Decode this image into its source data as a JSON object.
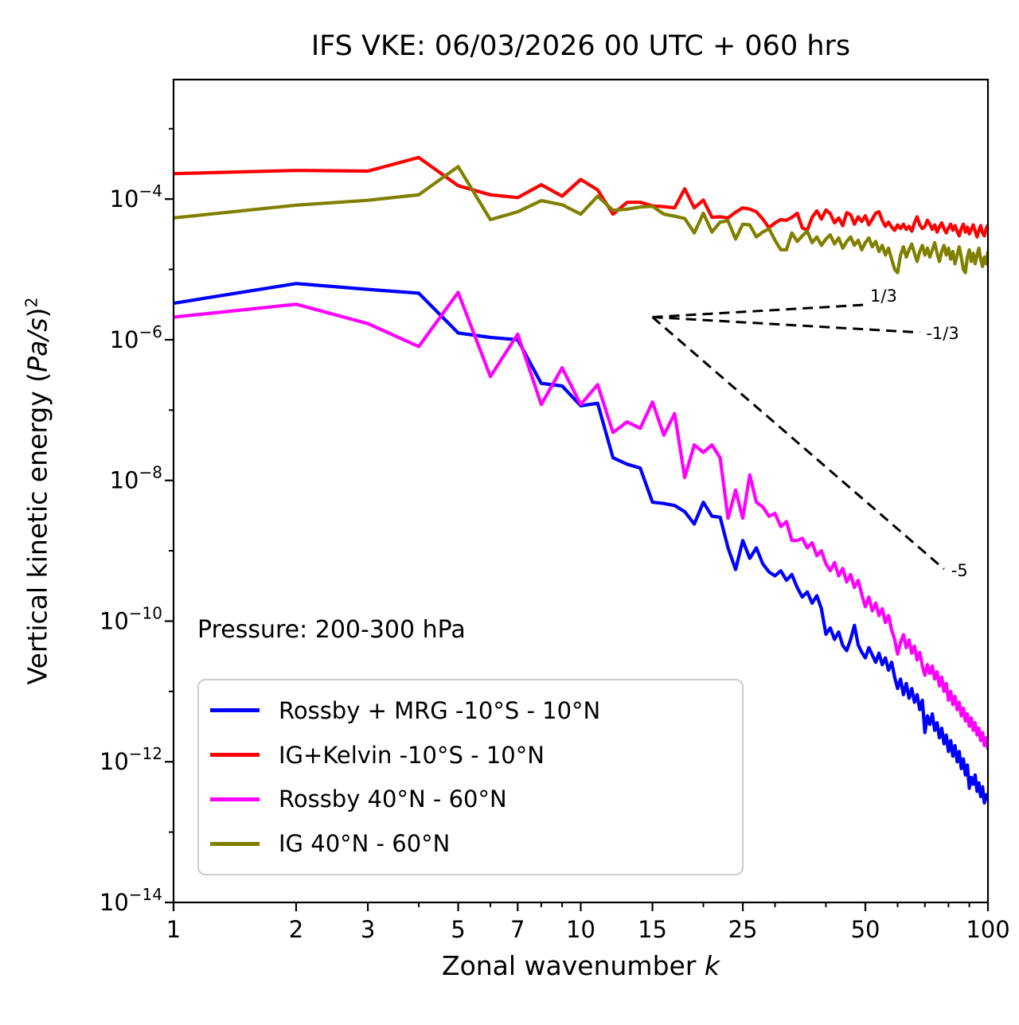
{
  "title": "IFS VKE: 06/03/2026 00 UTC + 060 hrs",
  "annotations": {
    "pressure": "Pressure: 200-300 hPa"
  },
  "x_axis": {
    "label_prefix": "Zonal wavenumber ",
    "label_italic": "k",
    "scale": "log",
    "range": [
      1,
      100
    ],
    "major_ticks": [
      1,
      2,
      3,
      5,
      7,
      10,
      15,
      25,
      50,
      100
    ],
    "minor_ticks": [
      4,
      6,
      8,
      9,
      20,
      30,
      40,
      60,
      70,
      80,
      90
    ]
  },
  "y_axis": {
    "label_prefix": "Vertical kinetic energy (",
    "label_italic": "Pa/s",
    "label_suffix": ")",
    "label_superscript": "2",
    "scale": "log",
    "range": [
      1e-14,
      0.005
    ],
    "major_tick_exponents": [
      -4,
      -6,
      -8,
      -10,
      -12,
      -14
    ],
    "minor_tick_exponents": [
      -3,
      -5,
      -7,
      -9,
      -11,
      -13
    ]
  },
  "chart_data": {
    "type": "line",
    "title": "IFS VKE: 06/03/2026 00 UTC + 060 hrs",
    "xlabel": "Zonal wavenumber k",
    "ylabel": "Vertical kinetic energy (Pa/s)^2",
    "xscale": "log",
    "yscale": "log",
    "xlim": [
      1,
      100
    ],
    "ylim": [
      1e-14,
      0.005
    ],
    "grid": false,
    "x_start": 1,
    "series": [
      {
        "name": "Rossby + MRG -10°S - 10°N",
        "color": "#0000ff",
        "values": [
          3.3e-06,
          6.3e-06,
          5.2e-06,
          4.6e-06,
          1.25e-06,
          1.08e-06,
          1e-06,
          2.4e-07,
          2.2e-07,
          1.15e-07,
          1.25e-07,
          2.1e-08,
          1.7e-08,
          1.5e-08,
          4.9e-09,
          4.7e-09,
          4.4e-09,
          3.6e-09,
          2.4e-09,
          4.9e-09,
          3.1e-09,
          3e-09,
          1.1e-09,
          5.4e-10,
          1.4e-09,
          7.8e-10,
          1.1e-09,
          6.5e-10,
          5e-10,
          4.4e-10,
          5.2e-10,
          3.8e-10,
          4.6e-10,
          3e-10,
          2.2e-10,
          2.6e-10,
          1.8e-10,
          2.3e-10,
          1.5e-10,
          6.5e-11,
          8e-11,
          5.5e-11,
          7e-11,
          4.5e-11,
          3.8e-11,
          5.5e-11,
          8.7e-11,
          4.6e-11,
          3.6e-11,
          3e-11,
          4.2e-11,
          3.3e-11,
          2.6e-11,
          3.5e-11,
          2.4e-11,
          3e-11,
          2e-11,
          2.6e-11,
          1.6e-11,
          1.1e-11,
          1.5e-11,
          9e-12,
          1.3e-11,
          8e-12,
          1.1e-11,
          7e-12,
          9e-12,
          5.5e-12,
          7.5e-12,
          2.6e-12,
          4.5e-12,
          3.4e-12,
          4.8e-12,
          2.8e-12,
          3.6e-12,
          2.2e-12,
          3e-12,
          1.8e-12,
          2.4e-12,
          1.4e-12,
          2e-12,
          1.2e-12,
          1.7e-12,
          1e-12,
          1.4e-12,
          8e-13,
          1.1e-12,
          6.5e-13,
          9e-13,
          4.2e-13,
          6e-13,
          4.8e-13,
          6.5e-13,
          3.8e-13,
          5e-13,
          3.2e-13,
          4.4e-13,
          2.6e-13,
          3.4e-13,
          2.8e-13
        ]
      },
      {
        "name": "IG+Kelvin -10°S - 10°N",
        "color": "#ff0000",
        "values": [
          0.00023,
          0.000255,
          0.00025,
          0.00039,
          0.000155,
          0.000115,
          0.000105,
          0.00016,
          0.00011,
          0.00019,
          0.000135,
          6.1e-05,
          9e-05,
          9e-05,
          8e-05,
          7.8e-05,
          7.5e-05,
          0.00014,
          7.5e-05,
          9.7e-05,
          5.5e-05,
          5.6e-05,
          5.4e-05,
          6.5e-05,
          7.5e-05,
          7.2e-05,
          6.6e-05,
          5.2e-05,
          3.9e-05,
          4.6e-05,
          5.1e-05,
          5e-05,
          5.5e-05,
          6.3e-05,
          3.9e-05,
          3.6e-05,
          5.5e-05,
          6.8e-05,
          5.2e-05,
          7e-05,
          6.2e-05,
          4.6e-05,
          5.4e-05,
          4.2e-05,
          6.4e-05,
          6e-05,
          4.4e-05,
          5.6e-05,
          4.8e-05,
          5.8e-05,
          4.3e-05,
          5.2e-05,
          6.3e-05,
          6.6e-05,
          5e-05,
          4.1e-05,
          4.7e-05,
          4e-05,
          3.6e-05,
          4.3e-05,
          3.8e-05,
          4.4e-05,
          3.7e-05,
          4.1e-05,
          3.5e-05,
          4.6e-05,
          5.6e-05,
          4.3e-05,
          3.8e-05,
          4.1e-05,
          5e-05,
          4.4e-05,
          3.7e-05,
          4.3e-05,
          3.4e-05,
          4e-05,
          4.6e-05,
          3.8e-05,
          3.3e-05,
          3.9e-05,
          4.4e-05,
          3.6e-05,
          4.2e-05,
          3.5e-05,
          3e-05,
          3.8e-05,
          4.4e-05,
          3.4e-05,
          4e-05,
          3.2e-05,
          3.7e-05,
          4.3e-05,
          3.5e-05,
          2.9e-05,
          3.6e-05,
          4.2e-05,
          3.3e-05,
          3e-05,
          3.8e-05,
          4.3e-05
        ]
      },
      {
        "name": "Rossby 40°N - 60°N",
        "color": "#ff00ff",
        "values": [
          2.1e-06,
          3.2e-06,
          1.7e-06,
          8e-07,
          4.7e-06,
          3e-07,
          1.2e-06,
          1.2e-07,
          4e-07,
          1.2e-07,
          2.3e-07,
          4.8e-08,
          6.8e-08,
          5.5e-08,
          1.3e-07,
          4.4e-08,
          8.9e-08,
          1.1e-08,
          3.2e-08,
          2.5e-08,
          3.2e-08,
          2.1e-08,
          2.9e-09,
          7.3e-09,
          2.9e-09,
          1.2e-08,
          4.9e-09,
          4.2e-09,
          3.1e-09,
          3.4e-09,
          2.2e-09,
          2.6e-09,
          1.4e-09,
          1.4e-09,
          1.5e-09,
          1.1e-09,
          1.3e-09,
          8.5e-10,
          1e-09,
          6.5e-10,
          5.2e-10,
          6.8e-10,
          4.4e-10,
          5.6e-10,
          3.6e-10,
          4.6e-10,
          3e-10,
          3.8e-10,
          2.4e-10,
          1.6e-10,
          2.2e-10,
          1.4e-10,
          1.8e-10,
          1.2e-10,
          1.5e-10,
          9.5e-11,
          1.2e-10,
          7.5e-11,
          5.5e-11,
          3.4e-11,
          5e-11,
          6.4e-11,
          4.2e-11,
          5.4e-11,
          3.5e-11,
          4.4e-11,
          2.8e-11,
          3.6e-11,
          2.3e-11,
          1.7e-11,
          2.4e-11,
          1.8e-11,
          2.3e-11,
          1.5e-11,
          1.9e-11,
          1.2e-11,
          1.6e-11,
          1e-11,
          1.3e-11,
          7.5e-12,
          1e-11,
          6.5e-12,
          8.5e-12,
          5.5e-12,
          7e-12,
          4.5e-12,
          5.8e-12,
          3.8e-12,
          4.8e-12,
          3.2e-12,
          4.2e-12,
          2.8e-12,
          3.6e-12,
          2.4e-12,
          3e-12,
          2e-12,
          2.6e-12,
          1.7e-12,
          2.2e-12,
          1.5e-12
        ]
      },
      {
        "name": "IG 40°N - 60°N",
        "color": "#808000",
        "values": [
          5.4e-05,
          8.2e-05,
          9.6e-05,
          0.000115,
          0.00029,
          5.1e-05,
          6.6e-05,
          9.5e-05,
          8.3e-05,
          6.1e-05,
          0.00011,
          6.9e-05,
          7.2e-05,
          7.7e-05,
          7.9e-05,
          6.1e-05,
          5.7e-05,
          5.3e-05,
          3.3e-05,
          6.3e-05,
          3.4e-05,
          4.7e-05,
          4.9e-05,
          2.7e-05,
          4.4e-05,
          4.3e-05,
          2.9e-05,
          3.4e-05,
          3.8e-05,
          2.6e-05,
          1.9e-05,
          1.9e-05,
          3.3e-05,
          2.5e-05,
          3e-05,
          3.5e-05,
          2.4e-05,
          2.9e-05,
          2.2e-05,
          2.7e-05,
          3.1e-05,
          2.3e-05,
          2.8e-05,
          2e-05,
          2.5e-05,
          2.9e-05,
          2.2e-05,
          2.6e-05,
          1.9e-05,
          2.4e-05,
          2.8e-05,
          2.1e-05,
          2.5e-05,
          1.8e-05,
          2.2e-05,
          1.6e-05,
          2e-05,
          1.4e-05,
          1e-05,
          9e-06,
          1.6e-05,
          2.1e-05,
          1.5e-05,
          1.9e-05,
          2.3e-05,
          1.7e-05,
          1.3e-05,
          1.8e-05,
          2.2e-05,
          1.6e-05,
          2e-05,
          1.5e-05,
          1.9e-05,
          2.4e-05,
          1.7e-05,
          1.3e-05,
          1.8e-05,
          2.2e-05,
          1.6e-05,
          2e-05,
          1.4e-05,
          1.8e-05,
          1.2e-05,
          1.6e-05,
          2.1e-05,
          1.5e-05,
          1e-05,
          9e-06,
          1.5e-05,
          1.9e-05,
          1.3e-05,
          1.7e-05,
          1.2e-05,
          1.6e-05,
          2e-05,
          1.4e-05,
          1.1e-05,
          1.5e-05,
          1.2e-05,
          1.8e-05
        ]
      }
    ],
    "reference_lines": [
      {
        "label": "1/3",
        "slope": 0.333,
        "from": {
          "k": 15,
          "v": 2.1e-06
        },
        "to": {
          "k": 50,
          "v": 3.14e-06
        }
      },
      {
        "label": "-1/3",
        "slope": -0.333,
        "from": {
          "k": 15,
          "v": 2.1e-06
        },
        "to": {
          "k": 68,
          "v": 1.27e-06
        }
      },
      {
        "label": "-5",
        "slope": -5,
        "from": {
          "k": 15,
          "v": 2.1e-06
        },
        "to": {
          "k": 78,
          "v": 5.5e-10
        }
      }
    ],
    "legend": {
      "position": "lower left",
      "items": [
        {
          "label": "Rossby + MRG -10°S - 10°N",
          "color": "#0000ff"
        },
        {
          "label": "IG+Kelvin -10°S - 10°N",
          "color": "#ff0000"
        },
        {
          "label": "Rossby 40°N - 60°N",
          "color": "#ff00ff"
        },
        {
          "label": "IG 40°N - 60°N",
          "color": "#808000"
        }
      ]
    }
  }
}
